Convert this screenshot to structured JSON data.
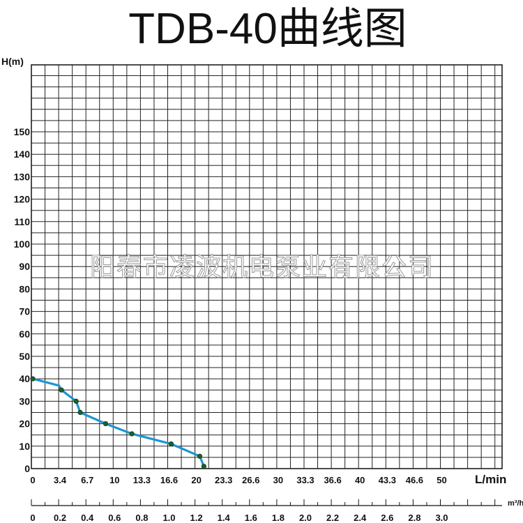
{
  "chart_data": {
    "type": "line",
    "title": "TDB-40曲线图",
    "ylabel": "H(m)",
    "xlabel": "L/min",
    "x2label": "m³/h",
    "watermark": "阳春市凌波机电泵业有限公司",
    "ylim": [
      0,
      190
    ],
    "xlim": [
      0,
      56.6
    ],
    "y_ticks": [
      0,
      10,
      20,
      30,
      40,
      50,
      60,
      70,
      80,
      90,
      100,
      110,
      120,
      130,
      140,
      150
    ],
    "x_ticks": [
      "0",
      "3.4",
      "6.7",
      "10",
      "13.3",
      "16.6",
      "20",
      "23.3",
      "26.6",
      "30",
      "33.3",
      "36.6",
      "40",
      "43.3",
      "46.6",
      "50"
    ],
    "x2_ticks": [
      "0",
      "0.2",
      "0.4",
      "0.6",
      "0.8",
      "1.0",
      "1.2",
      "1.4",
      "1.6",
      "1.8",
      "2.0",
      "2.2",
      "2.4",
      "2.6",
      "2.8",
      "3.0"
    ],
    "grid": true,
    "line_color": "#1b96d2",
    "point_color": "#1f5e2e",
    "series": [
      {
        "values": [
          {
            "x": 0,
            "y": 40
          },
          {
            "x": 3.2,
            "y": 37
          },
          {
            "x": 3.5,
            "y": 35
          },
          {
            "x": 5.3,
            "y": 30
          },
          {
            "x": 5.8,
            "y": 25
          },
          {
            "x": 8.9,
            "y": 20
          },
          {
            "x": 12.1,
            "y": 15.5
          },
          {
            "x": 16.9,
            "y": 11
          },
          {
            "x": 20.4,
            "y": 5.5
          },
          {
            "x": 20.9,
            "y": 1
          }
        ],
        "markers": [
          {
            "x": 0,
            "y": 40
          },
          {
            "x": 3.5,
            "y": 35
          },
          {
            "x": 5.3,
            "y": 30
          },
          {
            "x": 5.8,
            "y": 25
          },
          {
            "x": 8.9,
            "y": 20
          },
          {
            "x": 12.1,
            "y": 15.5
          },
          {
            "x": 16.9,
            "y": 11
          },
          {
            "x": 20.4,
            "y": 5.5
          },
          {
            "x": 20.9,
            "y": 1
          }
        ]
      }
    ]
  }
}
